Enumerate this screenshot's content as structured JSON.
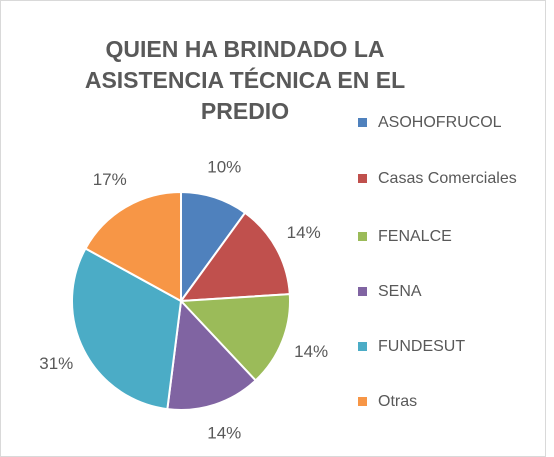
{
  "chart_data": {
    "type": "pie",
    "title": "QUIEN HA BRINDADO LA ASISTENCIA TÉCNICA EN EL PREDIO",
    "categories": [
      "ASOHOFRUCOL",
      "Casas Comerciales",
      "FENALCE",
      "SENA",
      "FUNDESUT",
      "Otras"
    ],
    "values": [
      10,
      14,
      14,
      14,
      31,
      17
    ],
    "value_labels": [
      "10%",
      "14%",
      "14%",
      "14%",
      "31%",
      "17%"
    ],
    "colors": [
      "#4f81bd",
      "#c0504d",
      "#9bbb59",
      "#8064a2",
      "#4bacc6",
      "#f79646"
    ],
    "legend": "right"
  }
}
